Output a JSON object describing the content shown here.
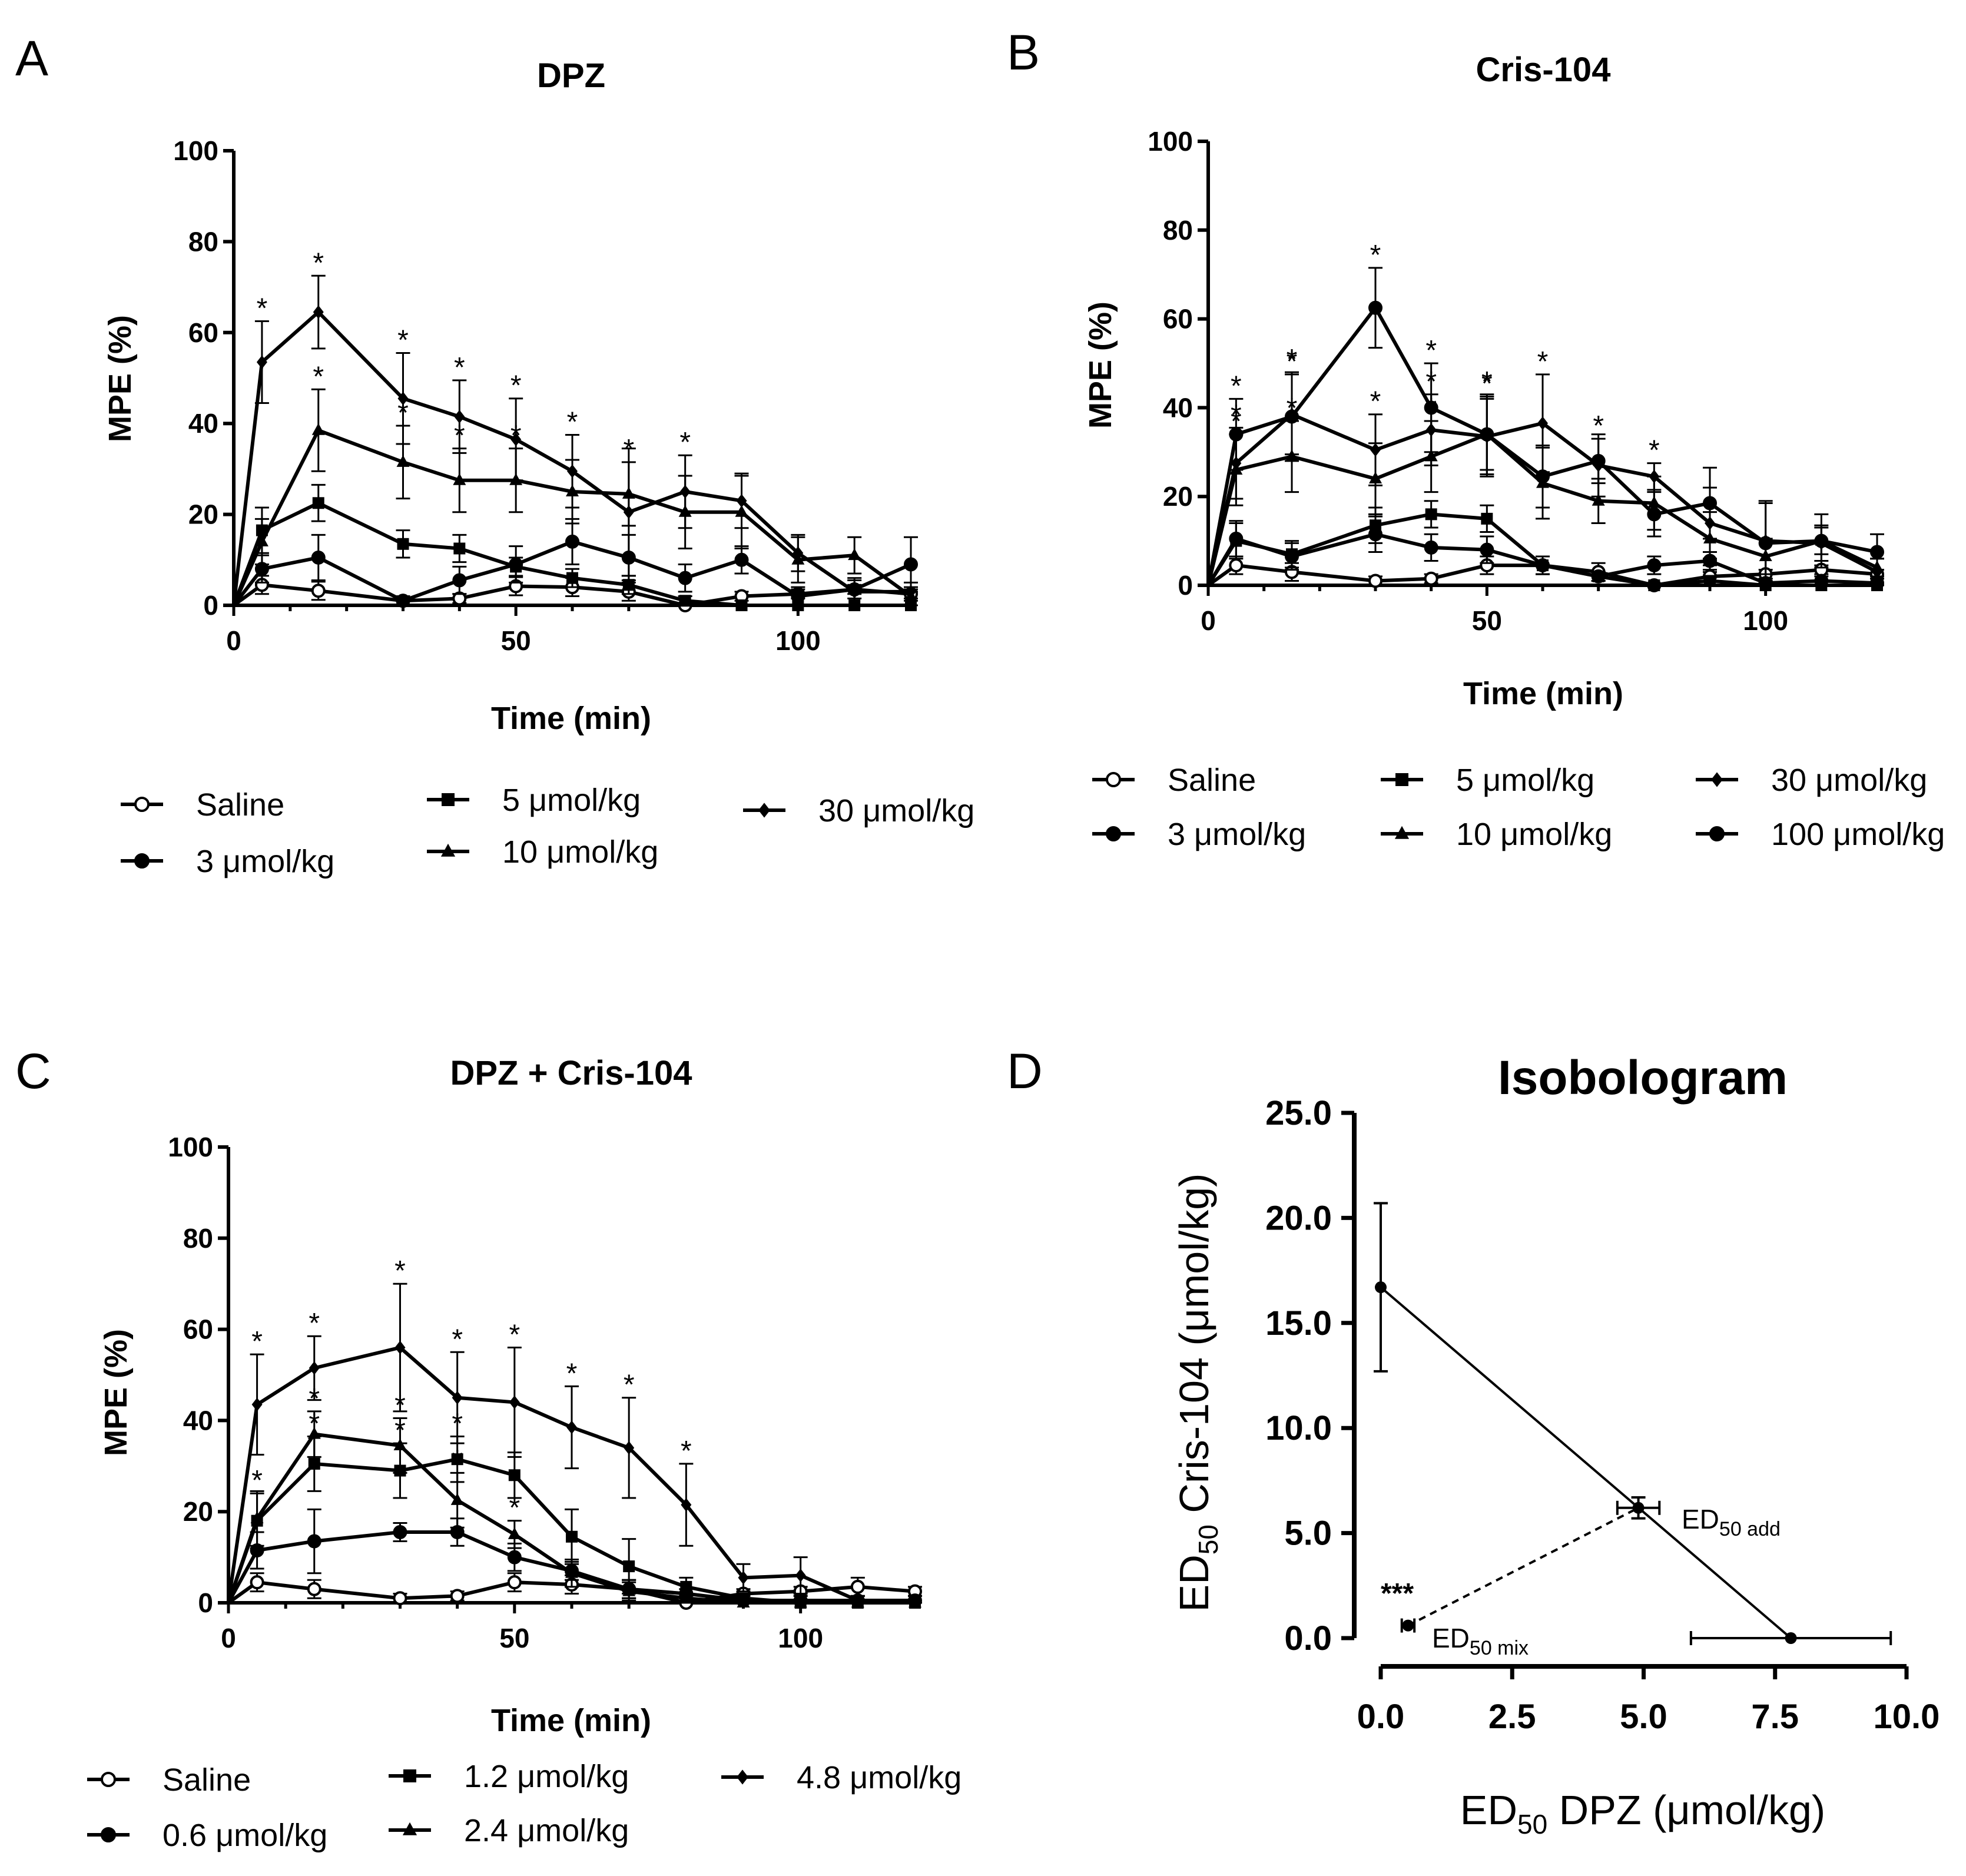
{
  "chart_data": [
    {
      "panel": "A",
      "type": "line",
      "title": "DPZ",
      "xlabel": "Time (min)",
      "ylabel": "MPE (%)",
      "xlim": [
        0,
        120
      ],
      "ylim": [
        0,
        100
      ],
      "xticks": [
        "0",
        "50",
        "100"
      ],
      "yticks": [
        "0",
        "20",
        "40",
        "60",
        "80",
        "100"
      ],
      "x": [
        0,
        5,
        15,
        30,
        40,
        50,
        60,
        70,
        80,
        90,
        100,
        110,
        120
      ],
      "series": [
        {
          "name": "Saline",
          "marker": "circle-open",
          "values": [
            0,
            4.5,
            3.2,
            1.0,
            1.5,
            4.2,
            4.0,
            3.0,
            0.0,
            2.0,
            2.5,
            3.5,
            2.5
          ],
          "err": [
            0,
            2,
            2,
            1,
            1,
            2,
            2,
            2,
            0,
            1,
            1,
            1,
            1
          ]
        },
        {
          "name": "3 μmol/kg",
          "marker": "circle",
          "values": [
            0,
            8.0,
            10.5,
            1.0,
            5.5,
            9.0,
            14.0,
            10.5,
            6.0,
            10.0,
            2.0,
            3.5,
            9.0
          ],
          "err": [
            0,
            3,
            5,
            1,
            3,
            4,
            5,
            5,
            3,
            3,
            2,
            2,
            6
          ]
        },
        {
          "name": "5 μmol/kg",
          "marker": "square",
          "values": [
            0,
            16.5,
            22.5,
            13.5,
            12.5,
            8.5,
            6.0,
            4.5,
            1.0,
            0.0,
            0.0,
            0.0,
            0.0
          ],
          "err": [
            0,
            5,
            4,
            3,
            3,
            2,
            2,
            2,
            1,
            0,
            0,
            0,
            0
          ]
        },
        {
          "name": "10 μmol/kg",
          "marker": "triangle",
          "values": [
            0,
            14.0,
            38.5,
            31.5,
            27.5,
            27.5,
            25.0,
            24.5,
            20.5,
            20.5,
            10.0,
            11.0,
            2.0
          ],
          "err": [
            0,
            5,
            9,
            8,
            7,
            7,
            7,
            7,
            8,
            8,
            5,
            4,
            2
          ]
        },
        {
          "name": "30 μmol/kg",
          "marker": "diamond",
          "values": [
            0,
            53.5,
            64.5,
            45.5,
            41.5,
            36.5,
            29.5,
            20.5,
            25.0,
            23.0,
            11.5,
            3.0,
            3.0
          ],
          "err": [
            0,
            9,
            8,
            10,
            8,
            9,
            8,
            14,
            8,
            6,
            4,
            3,
            2
          ]
        }
      ],
      "legend": {
        "position": "bottom",
        "entries": [
          "Saline",
          "3 μmol/kg",
          "5 μmol/kg",
          "10 μmol/kg",
          "30 μmol/kg"
        ]
      },
      "significance": [
        {
          "series": 4,
          "x": 5,
          "label": "*"
        },
        {
          "series": 4,
          "x": 15,
          "label": "*"
        },
        {
          "series": 4,
          "x": 30,
          "label": "*"
        },
        {
          "series": 4,
          "x": 40,
          "label": "*"
        },
        {
          "series": 4,
          "x": 50,
          "label": "*"
        },
        {
          "series": 4,
          "x": 60,
          "label": "*"
        },
        {
          "series": 4,
          "x": 80,
          "label": "*"
        },
        {
          "series": 3,
          "x": 15,
          "label": "*"
        },
        {
          "series": 3,
          "x": 30,
          "label": "*"
        },
        {
          "series": 3,
          "x": 40,
          "label": "*"
        },
        {
          "series": 3,
          "x": 50,
          "label": "*"
        },
        {
          "series": 3,
          "x": 70,
          "label": "*"
        }
      ]
    },
    {
      "panel": "B",
      "type": "line",
      "title": "Cris-104",
      "xlabel": "Time (min)",
      "ylabel": "MPE (%)",
      "xlim": [
        0,
        120
      ],
      "ylim": [
        0,
        100
      ],
      "xticks": [
        "0",
        "50",
        "100"
      ],
      "yticks": [
        "0",
        "20",
        "40",
        "60",
        "80",
        "100"
      ],
      "x": [
        0,
        5,
        15,
        30,
        40,
        50,
        60,
        70,
        80,
        90,
        100,
        110,
        120
      ],
      "series": [
        {
          "name": "Saline",
          "marker": "circle-open",
          "values": [
            0,
            4.5,
            3.0,
            1.0,
            1.5,
            4.5,
            4.5,
            3.0,
            0.0,
            2.0,
            2.5,
            3.5,
            2.5
          ],
          "err": [
            0,
            2,
            2,
            1,
            1,
            2,
            2,
            2,
            0,
            1,
            1,
            1,
            1
          ]
        },
        {
          "name": "3 μmol/kg",
          "marker": "circle",
          "values": [
            0,
            10.5,
            6.5,
            11.5,
            8.5,
            8.0,
            4.5,
            2.0,
            4.5,
            5.5,
            0.5,
            1.0,
            0.5
          ],
          "err": [
            0,
            4,
            3,
            4,
            3,
            3,
            2,
            1,
            2,
            2,
            1,
            1,
            1
          ]
        },
        {
          "name": "5 μmol/kg",
          "marker": "square",
          "values": [
            0,
            10.0,
            7.0,
            13.5,
            16.0,
            15.0,
            4.5,
            2.0,
            0.0,
            1.0,
            0.0,
            0.0,
            0.0
          ],
          "err": [
            0,
            4,
            3,
            4,
            3,
            3,
            2,
            1,
            0,
            1,
            0,
            0,
            0
          ]
        },
        {
          "name": "10 μmol/kg",
          "marker": "triangle",
          "values": [
            0,
            26.0,
            29.0,
            24.0,
            29.0,
            34.0,
            23.0,
            19.0,
            18.5,
            10.5,
            6.5,
            10.0,
            4.0
          ],
          "err": [
            0,
            8,
            8,
            8,
            8,
            8,
            8,
            5,
            6,
            6,
            4,
            3,
            2
          ]
        },
        {
          "name": "30 μmol/kg",
          "marker": "diamond",
          "values": [
            0,
            27.5,
            38.5,
            30.5,
            35.0,
            33.5,
            36.5,
            27.0,
            24.5,
            14.0,
            10.0,
            9.5,
            3.0
          ],
          "err": [
            0,
            8,
            9,
            8,
            8,
            9,
            11,
            7,
            3,
            8,
            9,
            4,
            3
          ]
        },
        {
          "name": "100 μmol/kg",
          "marker": "circle",
          "values": [
            0,
            34.0,
            38.0,
            62.5,
            40.0,
            34.0,
            24.5,
            28.0,
            16.0,
            18.5,
            9.5,
            10.0,
            7.5
          ],
          "err": [
            0,
            8,
            10,
            9,
            10,
            9,
            7,
            5,
            5,
            8,
            9,
            6,
            4
          ]
        }
      ],
      "legend": {
        "position": "bottom",
        "entries": [
          "Saline",
          "3 μmol/kg",
          "5 μmol/kg",
          "10 μmol/kg",
          "30 μmol/kg",
          "100 μmol/kg"
        ]
      },
      "significance": [
        {
          "series": 5,
          "x": 5,
          "label": "*"
        },
        {
          "series": 4,
          "x": 5,
          "label": "*"
        },
        {
          "series": 3,
          "x": 5,
          "label": "*"
        },
        {
          "series": 5,
          "x": 15,
          "label": "*"
        },
        {
          "series": 4,
          "x": 15,
          "label": "*"
        },
        {
          "series": 3,
          "x": 15,
          "label": "*"
        },
        {
          "series": 5,
          "x": 30,
          "label": "*"
        },
        {
          "series": 4,
          "x": 30,
          "label": "*"
        },
        {
          "series": 5,
          "x": 40,
          "label": "*"
        },
        {
          "series": 4,
          "x": 40,
          "label": "*"
        },
        {
          "series": 3,
          "x": 40,
          "label": "*"
        },
        {
          "series": 5,
          "x": 50,
          "label": "*"
        },
        {
          "series": 4,
          "x": 50,
          "label": "*"
        },
        {
          "series": 4,
          "x": 60,
          "label": "*"
        },
        {
          "series": 5,
          "x": 70,
          "label": "*"
        },
        {
          "series": 4,
          "x": 80,
          "label": "*"
        }
      ]
    },
    {
      "panel": "C",
      "type": "line",
      "title": "DPZ + Cris-104",
      "xlabel": "Time (min)",
      "ylabel": "MPE (%)",
      "xlim": [
        0,
        120
      ],
      "ylim": [
        0,
        100
      ],
      "xticks": [
        "0",
        "50",
        "100"
      ],
      "yticks": [
        "0",
        "20",
        "40",
        "60",
        "80",
        "100"
      ],
      "x": [
        0,
        5,
        15,
        30,
        40,
        50,
        60,
        70,
        80,
        90,
        100,
        110,
        120
      ],
      "series": [
        {
          "name": "Saline",
          "marker": "circle-open",
          "values": [
            0,
            4.5,
            3.0,
            1.0,
            1.5,
            4.5,
            4.0,
            3.0,
            0.0,
            2.0,
            2.5,
            3.5,
            2.5
          ],
          "err": [
            0,
            2,
            2,
            1,
            1,
            2,
            2,
            2,
            0,
            1,
            1,
            2,
            1
          ]
        },
        {
          "name": "0.6 μmol/kg",
          "marker": "circle",
          "values": [
            0,
            11.5,
            13.5,
            15.5,
            15.5,
            10.0,
            7.0,
            3.0,
            2.0,
            0.5,
            0.5,
            0.5,
            0.5
          ],
          "err": [
            0,
            4,
            7,
            2,
            3,
            3,
            2,
            2,
            1,
            1,
            1,
            1,
            1
          ]
        },
        {
          "name": "1.2 μmol/kg",
          "marker": "square",
          "values": [
            0,
            18.0,
            30.5,
            29.0,
            31.5,
            28.0,
            14.5,
            8.0,
            3.5,
            1.0,
            0.0,
            0.0,
            0.0
          ],
          "err": [
            0,
            6,
            6,
            6,
            5,
            5,
            6,
            6,
            2,
            1,
            0,
            0,
            0
          ]
        },
        {
          "name": "2.4 μmol/kg",
          "marker": "triangle",
          "values": [
            0,
            18.5,
            37.0,
            34.5,
            22.5,
            15.0,
            6.5,
            2.5,
            1.0,
            0.0,
            0.0,
            0.0,
            0.0
          ],
          "err": [
            0,
            6,
            5,
            6,
            6,
            3,
            3,
            2,
            1,
            0,
            0,
            0,
            0
          ]
        },
        {
          "name": "4.8 μmol/kg",
          "marker": "diamond",
          "values": [
            0,
            43.5,
            51.5,
            56.0,
            45.0,
            44.0,
            38.5,
            34.0,
            21.5,
            5.5,
            6.0,
            0.5,
            0.5
          ],
          "err": [
            0,
            11,
            7,
            14,
            10,
            12,
            9,
            11,
            9,
            3,
            4,
            1,
            1
          ]
        }
      ],
      "legend": {
        "position": "bottom",
        "entries": [
          "Saline",
          "0.6 μmol/kg",
          "1.2 μmol/kg",
          "2.4 μmol/kg",
          "4.8 μmol/kg"
        ]
      },
      "significance": [
        {
          "series": 4,
          "x": 5,
          "label": "*"
        },
        {
          "series": 4,
          "x": 15,
          "label": "*"
        },
        {
          "series": 4,
          "x": 30,
          "label": "*"
        },
        {
          "series": 4,
          "x": 40,
          "label": "*"
        },
        {
          "series": 4,
          "x": 50,
          "label": "*"
        },
        {
          "series": 4,
          "x": 60,
          "label": "*"
        },
        {
          "series": 4,
          "x": 70,
          "label": "*"
        },
        {
          "series": 4,
          "x": 80,
          "label": "*"
        },
        {
          "series": 2,
          "x": 5,
          "label": "*"
        },
        {
          "series": 3,
          "x": 15,
          "label": "*"
        },
        {
          "series": 2,
          "x": 15,
          "label": "*"
        },
        {
          "series": 3,
          "x": 30,
          "label": "*"
        },
        {
          "series": 2,
          "x": 30,
          "label": "*"
        },
        {
          "series": 2,
          "x": 40,
          "label": "*"
        },
        {
          "series": 3,
          "x": 40,
          "label": "*"
        },
        {
          "series": 3,
          "x": 50,
          "label": "*"
        }
      ]
    },
    {
      "panel": "D",
      "type": "scatter",
      "title": "Isobologram",
      "xlabel": "ED50 DPZ (μmol/kg)",
      "ylabel": "ED50 Cris-104 (μmol/kg)",
      "xlim": [
        0,
        10
      ],
      "ylim": [
        0,
        25
      ],
      "xticks": [
        "0.0",
        "2.5",
        "5.0",
        "7.5",
        "10.0"
      ],
      "yticks": [
        "0.0",
        "5.0",
        "10.0",
        "15.0",
        "20.0",
        "25.0"
      ],
      "points": [
        {
          "name": "ED50 Cris-104",
          "x": 0.0,
          "y": 16.7,
          "yerr_low": 4.0,
          "yerr_high": 4.0
        },
        {
          "name": "ED50 DPZ",
          "x": 7.8,
          "y": 0.0,
          "xerr_low": 1.9,
          "xerr_high": 1.9
        },
        {
          "name": "ED50 add",
          "x": 4.9,
          "y": 6.2,
          "xerr": 0.4,
          "yerr": 0.5
        },
        {
          "name": "ED50 mix",
          "x": 0.52,
          "y": 0.6,
          "xerr": 0.12
        }
      ],
      "additivity_line": {
        "from": [
          0.0,
          16.7
        ],
        "to": [
          7.8,
          0.0
        ],
        "style": "solid"
      },
      "mix_line": {
        "from": [
          0.52,
          0.6
        ],
        "to": [
          4.9,
          6.2
        ],
        "style": "dashed"
      },
      "annotations": {
        "significance": "***",
        "add_label": "ED",
        "add_sub": "50 add",
        "mix_label": "ED",
        "mix_sub": "50 mix"
      }
    }
  ],
  "panel_labels": [
    "A",
    "B",
    "C",
    "D"
  ],
  "axis_text": {
    "d_y_prefix": "ED",
    "d_y_sub": "50",
    "d_y_suffix": " Cris-104 (μmol/kg)",
    "d_x_prefix": "ED",
    "d_x_sub": "50",
    "d_x_suffix": " DPZ (μmol/kg)"
  }
}
